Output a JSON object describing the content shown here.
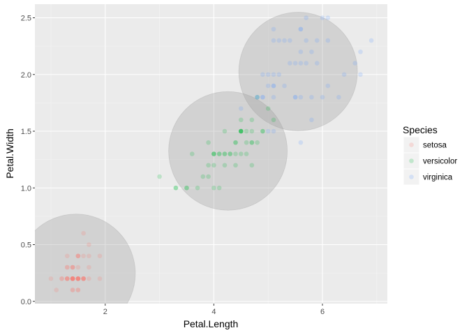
{
  "chart_data": {
    "type": "scatter",
    "title": "",
    "xlabel": "Petal.Length",
    "ylabel": "Petal.Width",
    "xlim": [
      0.705,
      7.195
    ],
    "ylim": [
      -0.02,
      2.62
    ],
    "x_ticks": [
      2,
      4,
      6
    ],
    "x_tick_labels": [
      "2",
      "4",
      "6"
    ],
    "y_ticks": [
      0.0,
      0.5,
      1.0,
      1.5,
      2.0,
      2.5
    ],
    "y_tick_labels": [
      "0.0",
      "0.5",
      "1.0",
      "1.5",
      "2.0",
      "2.5"
    ],
    "grid": true,
    "background": "#ebebeb",
    "point_alpha": 0.2,
    "legend": {
      "title": "Species",
      "placement": "right"
    },
    "series": [
      {
        "name": "setosa",
        "color": "#F8766D",
        "x": [
          1.4,
          1.4,
          1.3,
          1.5,
          1.4,
          1.7,
          1.4,
          1.5,
          1.4,
          1.5,
          1.5,
          1.6,
          1.4,
          1.1,
          1.2,
          1.5,
          1.3,
          1.4,
          1.7,
          1.5,
          1.7,
          1.5,
          1.0,
          1.7,
          1.9,
          1.6,
          1.6,
          1.5,
          1.4,
          1.6,
          1.6,
          1.5,
          1.5,
          1.4,
          1.5,
          1.2,
          1.3,
          1.4,
          1.3,
          1.5,
          1.3,
          1.3,
          1.3,
          1.6,
          1.9,
          1.4,
          1.6,
          1.4,
          1.5,
          1.4
        ],
        "y": [
          0.2,
          0.2,
          0.2,
          0.2,
          0.2,
          0.4,
          0.3,
          0.2,
          0.2,
          0.1,
          0.2,
          0.2,
          0.1,
          0.1,
          0.2,
          0.4,
          0.4,
          0.3,
          0.3,
          0.3,
          0.2,
          0.4,
          0.2,
          0.5,
          0.2,
          0.2,
          0.4,
          0.2,
          0.2,
          0.2,
          0.2,
          0.4,
          0.1,
          0.2,
          0.2,
          0.2,
          0.2,
          0.1,
          0.2,
          0.2,
          0.3,
          0.3,
          0.2,
          0.6,
          0.4,
          0.3,
          0.2,
          0.2,
          0.2,
          0.2
        ]
      },
      {
        "name": "versicolor",
        "color": "#00BA38",
        "x": [
          4.7,
          4.5,
          4.9,
          4.0,
          4.6,
          4.5,
          4.7,
          3.3,
          4.6,
          3.9,
          3.5,
          4.2,
          4.0,
          4.7,
          3.6,
          4.4,
          4.5,
          4.1,
          4.5,
          3.9,
          4.8,
          4.0,
          4.9,
          4.7,
          4.3,
          4.4,
          4.8,
          5.0,
          4.5,
          3.5,
          3.8,
          3.7,
          3.9,
          5.1,
          4.5,
          4.5,
          4.7,
          4.4,
          4.1,
          4.0,
          4.4,
          4.6,
          4.0,
          3.3,
          4.2,
          4.2,
          4.2,
          4.3,
          3.0,
          4.1
        ],
        "y": [
          1.4,
          1.5,
          1.5,
          1.3,
          1.5,
          1.3,
          1.6,
          1.0,
          1.3,
          1.4,
          1.0,
          1.5,
          1.0,
          1.4,
          1.3,
          1.4,
          1.5,
          1.0,
          1.5,
          1.1,
          1.8,
          1.3,
          1.5,
          1.2,
          1.3,
          1.4,
          1.4,
          1.7,
          1.5,
          1.0,
          1.1,
          1.0,
          1.2,
          1.6,
          1.5,
          1.6,
          1.5,
          1.3,
          1.3,
          1.3,
          1.2,
          1.4,
          1.2,
          1.0,
          1.3,
          1.2,
          1.3,
          1.3,
          1.1,
          1.3
        ]
      },
      {
        "name": "virginica",
        "color": "#619CFF",
        "x": [
          6.0,
          5.1,
          5.9,
          5.6,
          5.8,
          6.6,
          4.5,
          6.3,
          5.8,
          6.1,
          5.1,
          5.3,
          5.5,
          5.0,
          5.1,
          5.3,
          5.5,
          6.7,
          6.9,
          5.0,
          5.7,
          4.9,
          6.7,
          4.9,
          5.7,
          6.0,
          4.8,
          4.9,
          5.6,
          5.8,
          6.1,
          6.4,
          5.6,
          5.1,
          5.6,
          6.1,
          5.6,
          5.5,
          4.8,
          5.4,
          5.6,
          5.1,
          5.1,
          5.9,
          5.7,
          5.2,
          5.0,
          5.2,
          5.4,
          5.1
        ],
        "y": [
          2.5,
          1.9,
          2.1,
          1.8,
          2.2,
          2.1,
          1.7,
          1.8,
          1.8,
          2.5,
          2.0,
          1.9,
          2.1,
          2.0,
          2.4,
          2.3,
          1.8,
          2.2,
          2.3,
          1.5,
          2.3,
          2.0,
          2.0,
          1.8,
          2.1,
          1.8,
          1.8,
          1.8,
          2.1,
          1.6,
          1.9,
          2.0,
          2.2,
          1.5,
          1.4,
          2.3,
          2.4,
          1.8,
          1.8,
          2.1,
          2.4,
          2.3,
          1.9,
          2.3,
          2.5,
          2.3,
          1.9,
          2.0,
          2.3,
          1.8
        ]
      }
    ],
    "circles": [
      {
        "cx": 1.462,
        "cy": 0.246,
        "r": 1.4,
        "color": "#999999",
        "alpha": 0.3
      },
      {
        "cx": 4.26,
        "cy": 1.326,
        "r": 1.4,
        "color": "#999999",
        "alpha": 0.3
      },
      {
        "cx": 5.552,
        "cy": 2.026,
        "r": 1.4,
        "color": "#999999",
        "alpha": 0.3
      }
    ]
  }
}
